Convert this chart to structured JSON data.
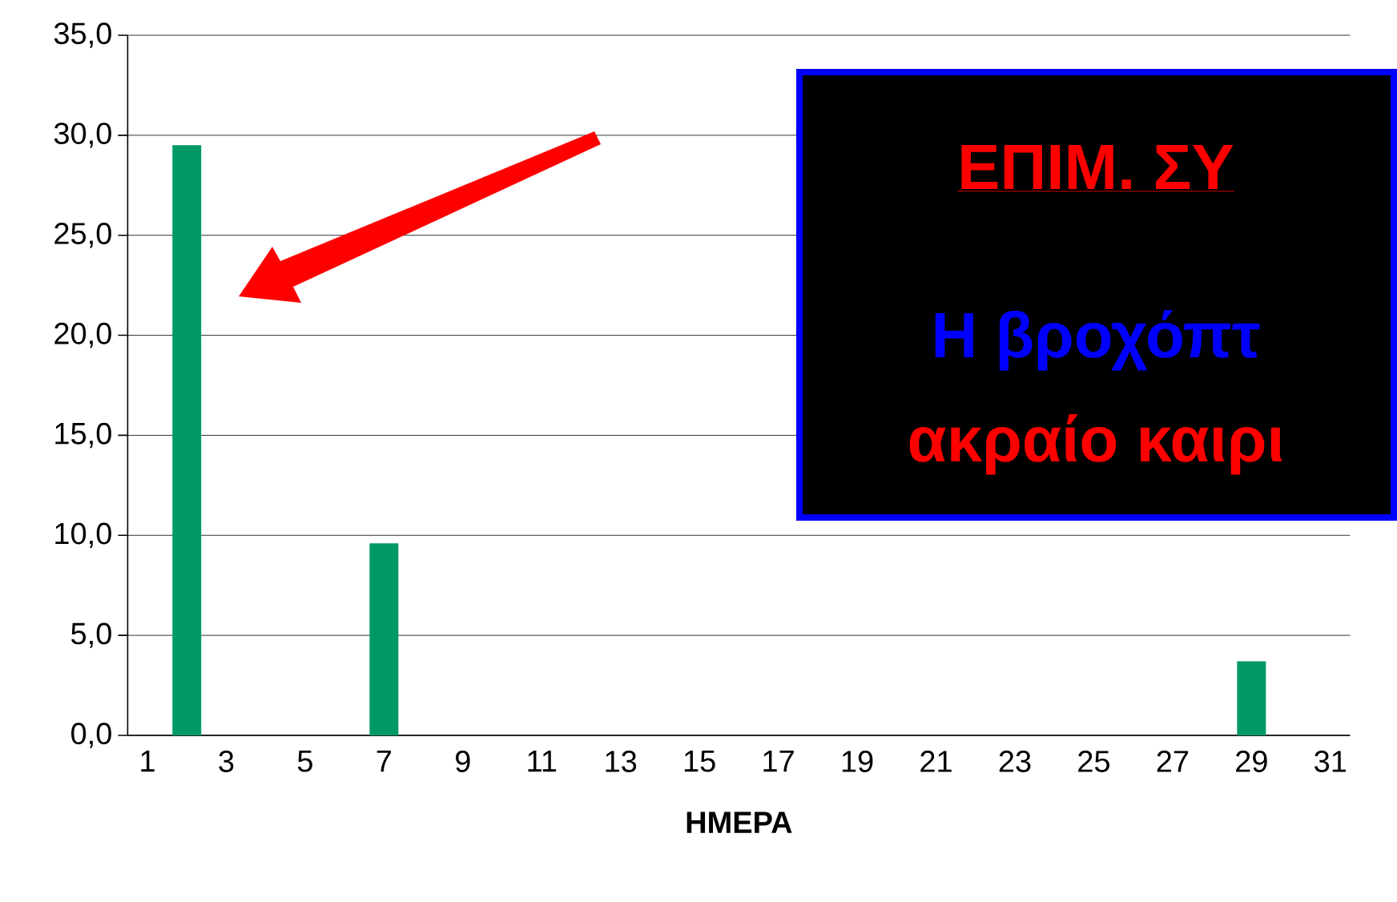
{
  "chart_data": {
    "type": "bar",
    "xlabel": "ΗΜΕΡΑ",
    "categories": [
      "1",
      null,
      "3",
      null,
      "5",
      null,
      "7",
      null,
      "9",
      null,
      "11",
      null,
      "13",
      null,
      "15",
      null,
      "17",
      null,
      "19",
      null,
      "21",
      null,
      "23",
      null,
      "25",
      null,
      "27",
      null,
      "29",
      null,
      "31"
    ],
    "values": [
      0,
      29.5,
      0,
      0,
      0,
      0,
      9.6,
      0,
      0,
      0,
      0,
      0,
      0,
      0,
      0,
      0,
      0,
      0,
      0,
      0,
      0,
      0,
      0,
      0,
      0,
      0,
      0,
      0,
      3.7,
      0,
      0
    ],
    "color": "#009966",
    "ylim": [
      0,
      35
    ],
    "yticks": [
      {
        "value": 0,
        "label": "0,0"
      },
      {
        "value": 5,
        "label": "5,0"
      },
      {
        "value": 10,
        "label": "10,0"
      },
      {
        "value": 15,
        "label": "15,0"
      },
      {
        "value": 20,
        "label": "20,0"
      },
      {
        "value": 25,
        "label": "25,0"
      },
      {
        "value": 30,
        "label": "30,0"
      },
      {
        "value": 35,
        "label": "35,0"
      }
    ],
    "grid": "y",
    "annotations": [
      "ΕΠΙΜ. ΣΥ",
      "Η βροχόπτ",
      "ακραίο καιρι"
    ]
  }
}
